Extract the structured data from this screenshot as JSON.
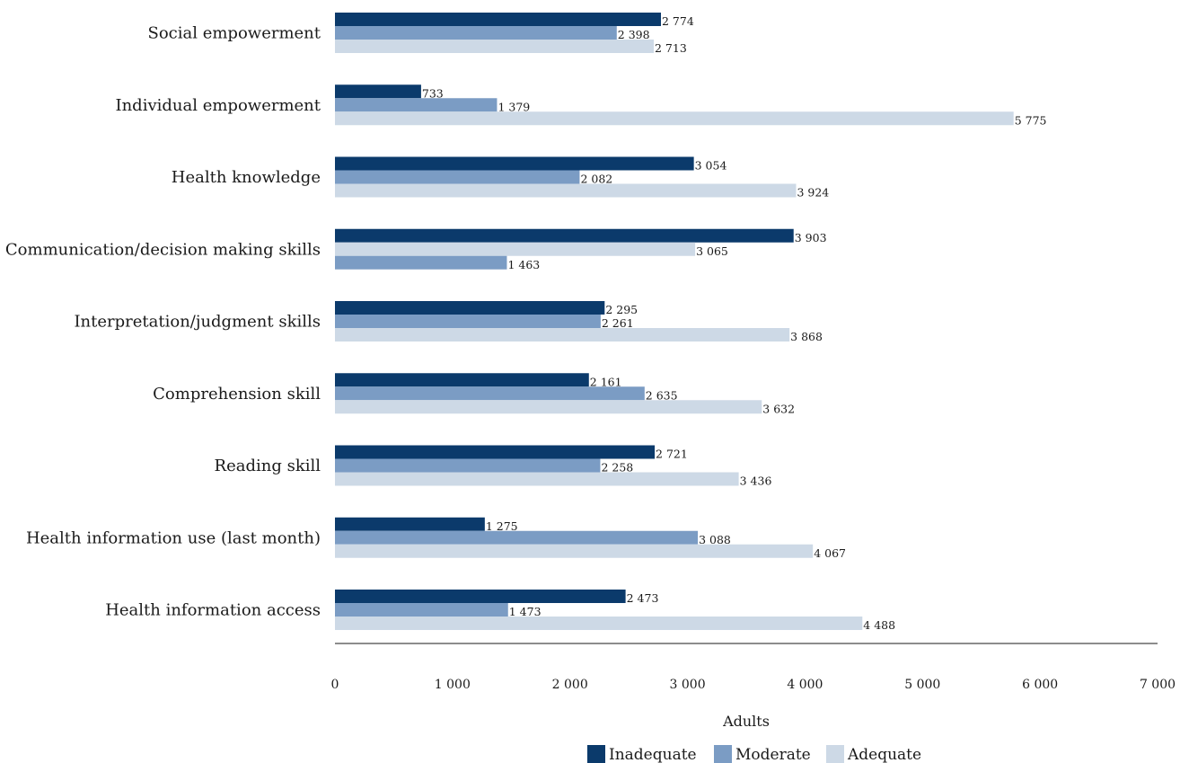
{
  "chart_data": {
    "type": "bar",
    "orientation": "horizontal",
    "xlabel": "Adults",
    "xlim": [
      0,
      7000
    ],
    "xticks": [
      0,
      1000,
      2000,
      3000,
      4000,
      5000,
      6000,
      7000
    ],
    "xtick_labels": [
      "0",
      "1 000",
      "2 000",
      "3 000",
      "4 000",
      "5 000",
      "6 000",
      "7 000"
    ],
    "grid": false,
    "legend_position": "bottom",
    "colors": {
      "Inadequate": "#0b3a6b",
      "Moderate": "#7b9cc4",
      "Adequate": "#cdd9e6"
    },
    "categories": [
      {
        "label": "Social empowerment",
        "bars": [
          {
            "series": "Inadequate",
            "value": 2774,
            "label": "2 774"
          },
          {
            "series": "Moderate",
            "value": 2398,
            "label": "2 398"
          },
          {
            "series": "Adequate",
            "value": 2713,
            "label": "2 713"
          }
        ]
      },
      {
        "label": "Individual empowerment",
        "bars": [
          {
            "series": "Inadequate",
            "value": 733,
            "label": "733"
          },
          {
            "series": "Moderate",
            "value": 1379,
            "label": "1 379"
          },
          {
            "series": "Adequate",
            "value": 5775,
            "label": "5 775"
          }
        ]
      },
      {
        "label": "Health knowledge",
        "bars": [
          {
            "series": "Inadequate",
            "value": 3054,
            "label": "3 054"
          },
          {
            "series": "Moderate",
            "value": 2082,
            "label": "2 082"
          },
          {
            "series": "Adequate",
            "value": 3924,
            "label": "3 924"
          }
        ]
      },
      {
        "label": "Communication/decision making skills",
        "bars": [
          {
            "series": "Inadequate",
            "value": 3903,
            "label": "3 903"
          },
          {
            "series": "Adequate",
            "value": 3065,
            "label": "3 065"
          },
          {
            "series": "Moderate",
            "value": 1463,
            "label": "1 463"
          }
        ]
      },
      {
        "label": "Interpretation/judgment skills",
        "bars": [
          {
            "series": "Inadequate",
            "value": 2295,
            "label": "2 295"
          },
          {
            "series": "Moderate",
            "value": 2261,
            "label": "2 261"
          },
          {
            "series": "Adequate",
            "value": 3868,
            "label": "3 868"
          }
        ]
      },
      {
        "label": "Comprehension skill",
        "bars": [
          {
            "series": "Inadequate",
            "value": 2161,
            "label": "2 161"
          },
          {
            "series": "Moderate",
            "value": 2635,
            "label": "2 635"
          },
          {
            "series": "Adequate",
            "value": 3632,
            "label": "3 632"
          }
        ]
      },
      {
        "label": "Reading skill",
        "bars": [
          {
            "series": "Inadequate",
            "value": 2721,
            "label": "2 721"
          },
          {
            "series": "Moderate",
            "value": 2258,
            "label": "2 258"
          },
          {
            "series": "Adequate",
            "value": 3436,
            "label": "3 436"
          }
        ]
      },
      {
        "label": "Health information use (last month)",
        "bars": [
          {
            "series": "Inadequate",
            "value": 1275,
            "label": "1 275"
          },
          {
            "series": "Moderate",
            "value": 3088,
            "label": "3 088"
          },
          {
            "series": "Adequate",
            "value": 4067,
            "label": "4 067"
          }
        ]
      },
      {
        "label": "Health information access",
        "bars": [
          {
            "series": "Inadequate",
            "value": 2473,
            "label": "2 473"
          },
          {
            "series": "Moderate",
            "value": 1473,
            "label": "1 473"
          },
          {
            "series": "Adequate",
            "value": 4488,
            "label": "4 488"
          }
        ]
      }
    ],
    "legend": [
      {
        "name": "Inadequate"
      },
      {
        "name": "Moderate"
      },
      {
        "name": "Adequate"
      }
    ]
  }
}
